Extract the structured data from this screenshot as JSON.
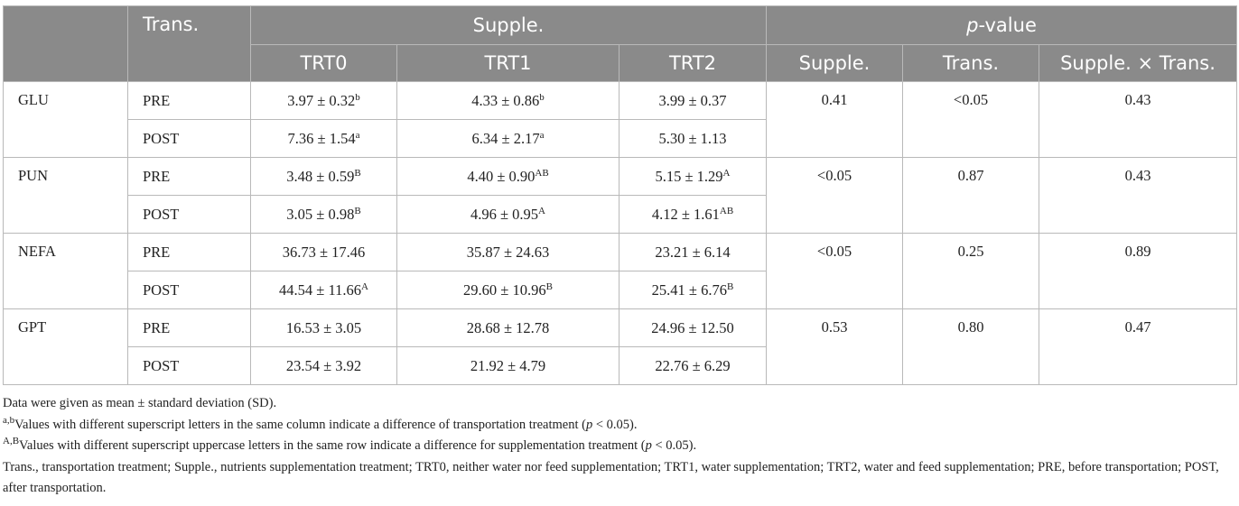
{
  "header": {
    "trans": "Trans.",
    "supple": "Supple.",
    "pvalue_italic": "p",
    "pvalue_rest": "-value",
    "sub": [
      "TRT0",
      "TRT1",
      "TRT2",
      "Supple.",
      "Trans.",
      "Supple. × Trans."
    ]
  },
  "rows": [
    {
      "var": "GLU",
      "p": [
        "0.41",
        "<0.05",
        "0.43"
      ],
      "sub": [
        {
          "trans": "PRE",
          "cells": [
            {
              "v": "3.97 ± 0.32",
              "s": "b"
            },
            {
              "v": "4.33 ± 0.86",
              "s": "b"
            },
            {
              "v": "3.99 ± 0.37",
              "s": ""
            }
          ]
        },
        {
          "trans": "POST",
          "cells": [
            {
              "v": "7.36 ± 1.54",
              "s": "a"
            },
            {
              "v": "6.34 ± 2.17",
              "s": "a"
            },
            {
              "v": "5.30 ± 1.13",
              "s": ""
            }
          ]
        }
      ]
    },
    {
      "var": "PUN",
      "p": [
        "<0.05",
        "0.87",
        "0.43"
      ],
      "sub": [
        {
          "trans": "PRE",
          "cells": [
            {
              "v": "3.48 ± 0.59",
              "s": "B"
            },
            {
              "v": "4.40 ± 0.90",
              "s": "AB"
            },
            {
              "v": "5.15 ± 1.29",
              "s": "A"
            }
          ]
        },
        {
          "trans": "POST",
          "cells": [
            {
              "v": "3.05 ± 0.98",
              "s": "B"
            },
            {
              "v": "4.96 ± 0.95",
              "s": "A"
            },
            {
              "v": "4.12 ± 1.61",
              "s": "AB"
            }
          ]
        }
      ]
    },
    {
      "var": "NEFA",
      "p": [
        "<0.05",
        "0.25",
        "0.89"
      ],
      "sub": [
        {
          "trans": "PRE",
          "cells": [
            {
              "v": "36.73 ± 17.46",
              "s": ""
            },
            {
              "v": "35.87 ± 24.63",
              "s": ""
            },
            {
              "v": "23.21 ± 6.14",
              "s": ""
            }
          ]
        },
        {
          "trans": "POST",
          "cells": [
            {
              "v": "44.54 ± 11.66",
              "s": "A"
            },
            {
              "v": "29.60 ± 10.96",
              "s": "B"
            },
            {
              "v": "25.41 ± 6.76",
              "s": "B"
            }
          ]
        }
      ]
    },
    {
      "var": "GPT",
      "p": [
        "0.53",
        "0.80",
        "0.47"
      ],
      "sub": [
        {
          "trans": "PRE",
          "cells": [
            {
              "v": "16.53 ± 3.05",
              "s": ""
            },
            {
              "v": "28.68 ± 12.78",
              "s": ""
            },
            {
              "v": "24.96 ± 12.50",
              "s": ""
            }
          ]
        },
        {
          "trans": "POST",
          "cells": [
            {
              "v": "23.54 ± 3.92",
              "s": ""
            },
            {
              "v": "21.92 ± 4.79",
              "s": ""
            },
            {
              "v": "22.76 ± 6.29",
              "s": ""
            }
          ]
        }
      ]
    }
  ],
  "notes": {
    "n1": "Data were given as mean ± standard deviation (SD).",
    "n2_sup": "a,b",
    "n2_text": "Values with different superscript letters in the same column indicate a difference of transportation treatment (",
    "n2_p": "p",
    "n2_end": " < 0.05).",
    "n3_sup": "A,B",
    "n3_text": "Values with different superscript uppercase letters in the same row indicate a difference for supplementation treatment (",
    "n3_p": "p",
    "n3_end": " < 0.05).",
    "n4": "Trans., transportation treatment; Supple., nutrients supplementation treatment; TRT0, neither water nor feed supplementation; TRT1, water supplementation; TRT2, water and feed supplementation; PRE, before transportation; POST, after transportation."
  }
}
